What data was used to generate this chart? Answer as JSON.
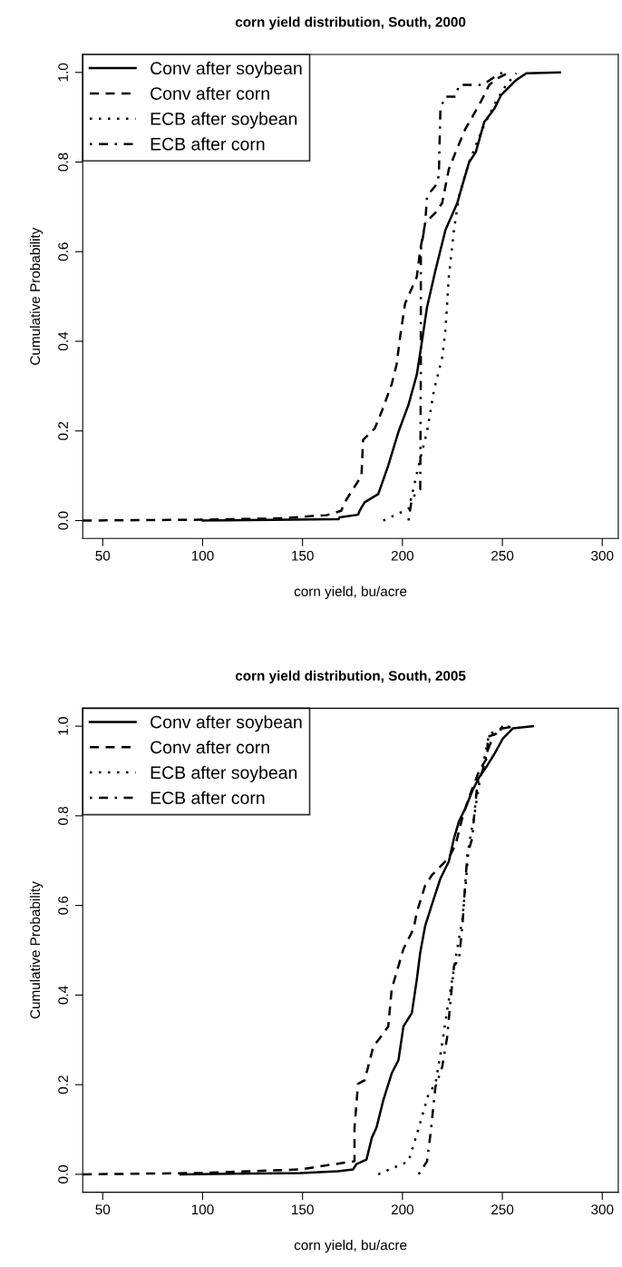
{
  "chart_data": [
    {
      "type": "line",
      "title": "corn yield distribution, South, 2000",
      "xlabel": "corn yield, bu/acre",
      "ylabel": "Cumulative Probability",
      "xlim": [
        40,
        308
      ],
      "xticks": [
        50,
        100,
        150,
        200,
        250,
        300
      ],
      "ylim": [
        -0.04,
        1.04
      ],
      "yticks": [
        {
          "value": 0,
          "label": "0.0"
        },
        {
          "value": 0.2,
          "label": "0.2"
        },
        {
          "value": 0.4,
          "label": "0.4"
        },
        {
          "value": 0.6,
          "label": "0.6"
        },
        {
          "value": 0.8,
          "label": "0.8"
        },
        {
          "value": 1,
          "label": "1.0"
        }
      ],
      "grid": false,
      "legend": "top left",
      "series": [
        {
          "name": "Conv after soybean",
          "color": "#000000",
          "line_style": "solid",
          "x": [
            100,
            168,
            168.5,
            177.8,
            178.6,
            181.1,
            187.9,
            192.9,
            198.0,
            203.0,
            207.2,
            209.8,
            212.3,
            216.5,
            221.5,
            227.4,
            230.8,
            233.3,
            236.7,
            240.9,
            246.0,
            249.3,
            256.9,
            262.0,
            278.8
          ],
          "values": [
            0,
            0.003,
            0.007,
            0.013,
            0.022,
            0.041,
            0.059,
            0.123,
            0.198,
            0.258,
            0.326,
            0.401,
            0.476,
            0.558,
            0.648,
            0.708,
            0.761,
            0.799,
            0.822,
            0.889,
            0.919,
            0.949,
            0.983,
            0.998,
            1.0
          ]
        },
        {
          "name": "Conv after corn",
          "color": "#000000",
          "line_style": "dashed",
          "x": [
            40,
            100,
            140,
            155,
            162,
            169.4,
            171,
            175.3,
            179.5,
            180.3,
            186.2,
            189.6,
            194.6,
            197.1,
            198.8,
            201.3,
            207.2,
            208.9,
            211.4,
            216.5,
            219.9,
            223.2,
            226.6,
            231.6,
            235.0,
            240.1,
            243.4,
            247.6,
            253.5
          ],
          "values": [
            0,
            0.002,
            0.005,
            0.01,
            0.012,
            0.022,
            0.04,
            0.07,
            0.1,
            0.18,
            0.206,
            0.243,
            0.304,
            0.349,
            0.409,
            0.484,
            0.544,
            0.604,
            0.664,
            0.687,
            0.709,
            0.784,
            0.822,
            0.875,
            0.901,
            0.942,
            0.972,
            0.987,
            1.0
          ]
        },
        {
          "name": "ECB after soybean",
          "color": "#000000",
          "line_style": "dotted",
          "x": [
            190.4,
            203,
            204.7,
            208.1,
            212.3,
            215.7,
            219.9,
            221.5,
            223.2,
            225.8,
            228.3,
            233.3,
            240.1,
            246.8,
            251.9,
            256.9
          ],
          "values": [
            0,
            0.026,
            0.056,
            0.123,
            0.198,
            0.289,
            0.364,
            0.424,
            0.544,
            0.649,
            0.724,
            0.799,
            0.875,
            0.935,
            0.972,
            0.998
          ]
        },
        {
          "name": "ECB after corn",
          "color": "#000000",
          "line_style": "dashdot",
          "x": [
            203,
            204.7,
            207.2,
            208.9,
            209.2,
            209.2,
            211.4,
            212.3,
            216.5,
            218.2,
            219.0,
            221.5,
            226.6,
            228.3,
            240.1,
            245.1,
            250.2
          ],
          "values": [
            0,
            0.048,
            0.063,
            0.07,
            0.349,
            0.604,
            0.664,
            0.724,
            0.747,
            0.769,
            0.92,
            0.946,
            0.946,
            0.972,
            0.972,
            0.987,
            1.0
          ]
        }
      ]
    },
    {
      "type": "line",
      "title": "corn yield distribution, South, 2005",
      "xlabel": "corn yield, bu/acre",
      "ylabel": "Cumulative Probability",
      "xlim": [
        40,
        308
      ],
      "xticks": [
        50,
        100,
        150,
        200,
        250,
        300
      ],
      "ylim": [
        -0.04,
        1.04
      ],
      "yticks": [
        {
          "value": 0,
          "label": "0.0"
        },
        {
          "value": 0.2,
          "label": "0.2"
        },
        {
          "value": 0.4,
          "label": "0.4"
        },
        {
          "value": 0.6,
          "label": "0.6"
        },
        {
          "value": 0.8,
          "label": "0.8"
        },
        {
          "value": 1,
          "label": "1.0"
        }
      ],
      "grid": false,
      "legend": "top left",
      "series": [
        {
          "name": "Conv after soybean",
          "color": "#000000",
          "line_style": "solid",
          "x": [
            89,
            149,
            167.7,
            175.3,
            177,
            182,
            184.7,
            187,
            190.4,
            194.6,
            198,
            200.5,
            204.7,
            207.2,
            208.9,
            211.4,
            215.7,
            219,
            223.2,
            225.8,
            228.3,
            231.6,
            235,
            238.4,
            241.8,
            246,
            250.2,
            255.2,
            265.3
          ],
          "values": [
            0,
            0.003,
            0.007,
            0.011,
            0.023,
            0.033,
            0.082,
            0.104,
            0.165,
            0.225,
            0.255,
            0.33,
            0.36,
            0.435,
            0.495,
            0.555,
            0.615,
            0.66,
            0.698,
            0.75,
            0.788,
            0.818,
            0.856,
            0.886,
            0.908,
            0.938,
            0.972,
            0.995,
            1.0
          ]
        },
        {
          "name": "Conv after corn",
          "color": "#000000",
          "line_style": "dashed",
          "x": [
            40,
            100,
            149,
            171,
            176,
            176,
            177.8,
            181.1,
            185.4,
            188.7,
            192.9,
            194.6,
            198,
            200.5,
            205.6,
            207.2,
            211.4,
            214.8,
            219,
            223.2,
            226.6,
            230,
            233.3,
            238.4,
            242.6,
            242.6,
            246.8,
            250.2,
            257
          ],
          "values": [
            0,
            0.003,
            0.011,
            0.026,
            0.029,
            0.104,
            0.202,
            0.21,
            0.285,
            0.304,
            0.33,
            0.413,
            0.465,
            0.503,
            0.548,
            0.585,
            0.645,
            0.668,
            0.687,
            0.706,
            0.736,
            0.796,
            0.841,
            0.901,
            0.931,
            0.976,
            0.983,
            0.995,
            1.0
          ]
        },
        {
          "name": "ECB after soybean",
          "color": "#000000",
          "line_style": "dotted",
          "x": [
            187.9,
            203,
            207.2,
            213.1,
            216.5,
            219.9,
            222.4,
            224.9,
            227.4,
            230,
            231.6,
            233.3,
            235.8,
            238.4,
            240.1,
            243.4,
            248.5,
            253.5
          ],
          "values": [
            0,
            0.029,
            0.089,
            0.18,
            0.202,
            0.292,
            0.367,
            0.435,
            0.503,
            0.57,
            0.645,
            0.736,
            0.796,
            0.871,
            0.908,
            0.983,
            0.991,
            1.0
          ]
        },
        {
          "name": "ECB after corn",
          "color": "#000000",
          "line_style": "dashdot",
          "x": [
            208.1,
            212.3,
            214,
            216.5,
            219.9,
            222.4,
            224.1,
            225.8,
            228.3,
            230,
            231.6,
            232.5,
            235,
            235.8,
            237.5,
            240.1,
            242.6,
            246,
            248.5,
            250.2
          ],
          "values": [
            0,
            0.029,
            0.089,
            0.195,
            0.24,
            0.307,
            0.39,
            0.465,
            0.48,
            0.555,
            0.66,
            0.713,
            0.751,
            0.796,
            0.871,
            0.901,
            0.946,
            0.983,
            0.991,
            1.0
          ]
        }
      ]
    }
  ]
}
